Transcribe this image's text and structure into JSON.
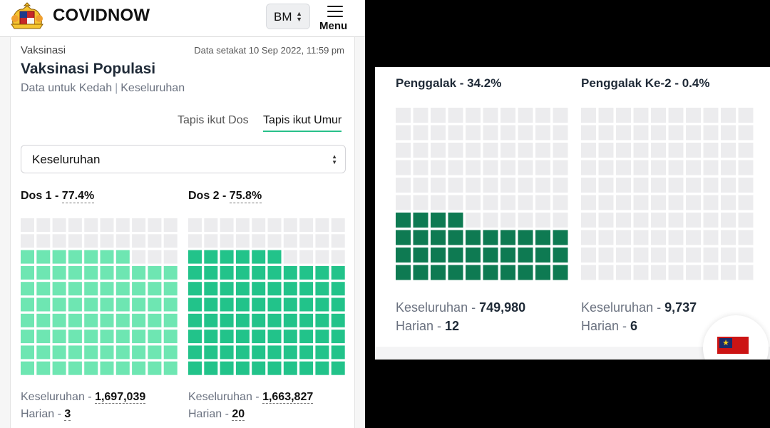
{
  "header": {
    "brand": "COVIDNOW",
    "lang": "BM",
    "menu_label": "Menu"
  },
  "card": {
    "breadcrumb": "Vaksinasi",
    "timestamp": "Data setakat 10 Sep 2022, 11:59 pm",
    "title": "Vaksinasi Populasi",
    "subtitle_state": "Data untuk Kedah",
    "subtitle_sep": "|",
    "subtitle_scope": "Keseluruhan",
    "tabs": [
      "Tapis ikut Dos",
      "Tapis ikut Umur"
    ],
    "active_tab": 1,
    "select_value": "Keseluruhan"
  },
  "dose1": {
    "name": "Dos 1 - ",
    "percent": "77.4%",
    "total_label": "Keseluruhan - ",
    "total": "1,697,039",
    "daily_label": "Harian - ",
    "daily": "3",
    "color": "#6ee6b2"
  },
  "dose2": {
    "name": "Dos 2 - ",
    "percent": "75.8%",
    "total_label": "Keseluruhan - ",
    "total": "1,663,827",
    "daily_label": "Harian - ",
    "daily": "20",
    "color": "#22c38a"
  },
  "booster1": {
    "title": "Penggalak - 34.2%",
    "total_label": "Keseluruhan - ",
    "total": "749,980",
    "daily_label": "Harian - ",
    "daily": "12",
    "color": "#0e7a52"
  },
  "booster2": {
    "title": "Penggalak Ke-2 - 0.4%",
    "total_label": "Keseluruhan - ",
    "total": "9,737",
    "daily_label": "Harian - ",
    "daily": "6",
    "color": "#0e7a52"
  },
  "waffle_fill": {
    "dose1": 0.774,
    "dose2": 0.758,
    "booster1": 0.342,
    "booster2": 0.004
  },
  "colors": {
    "empty_cell": "#ececee",
    "accent": "#28c08a"
  },
  "icons": {
    "logo": "malaysia-coat-of-arms-icon",
    "chevron": "up-down-chevron-icon",
    "menu": "hamburger-menu-icon",
    "flag": "china-flag-icon"
  }
}
